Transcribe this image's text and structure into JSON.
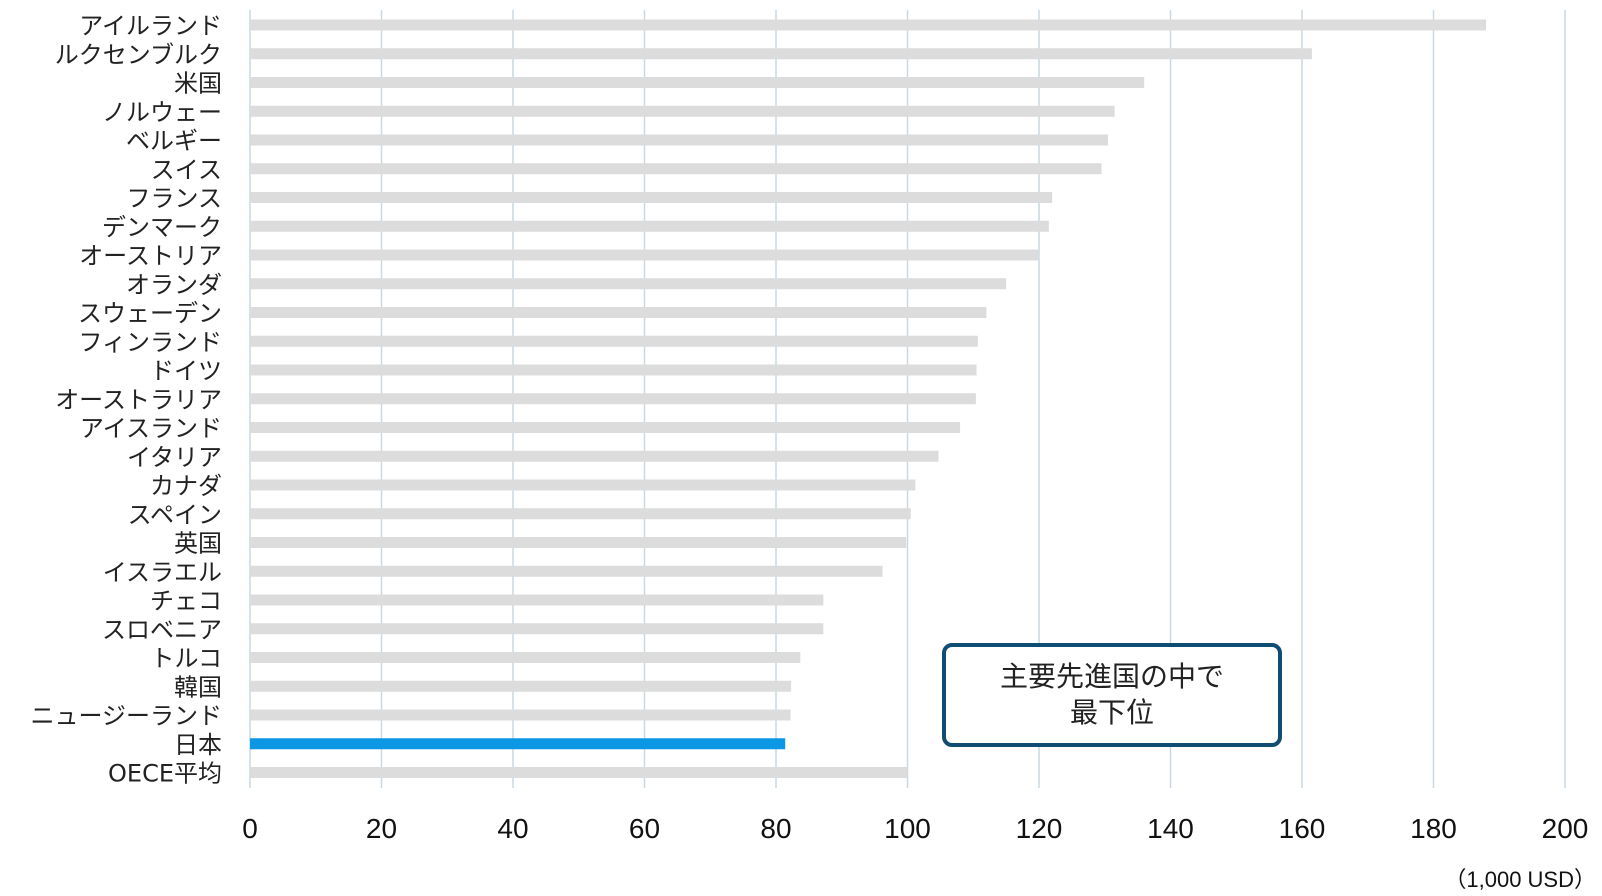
{
  "chart_data": {
    "type": "bar",
    "orientation": "horizontal",
    "categories": [
      "アイルランド",
      "ルクセンブルク",
      "米国",
      "ノルウェー",
      "ベルギー",
      "スイス",
      "フランス",
      "デンマーク",
      "オーストリア",
      "オランダ",
      "スウェーデン",
      "フィンランド",
      "ドイツ",
      "オーストラリア",
      "アイスランド",
      "イタリア",
      "カナダ",
      "スペイン",
      "英国",
      "イスラエル",
      "チェコ",
      "スロベニア",
      "トルコ",
      "韓国",
      "ニュージーランド",
      "日本",
      "OECE平均"
    ],
    "values": [
      188,
      161.5,
      136,
      131.5,
      130.5,
      129.5,
      122,
      121.5,
      120,
      115,
      112,
      110.7,
      110.5,
      110.4,
      108,
      104.7,
      101.2,
      100.5,
      99.8,
      96.2,
      87.2,
      87.2,
      83.7,
      82.3,
      82.2,
      81.4,
      100
    ],
    "highlight": "日本",
    "colors": {
      "bar": "#dcdcdc",
      "highlight": "#0b97e3",
      "grid": "#c9d9e3"
    },
    "xlim": [
      0,
      200
    ],
    "xticks": [
      "0",
      "20",
      "40",
      "60",
      "80",
      "100",
      "120",
      "140",
      "160",
      "180",
      "200"
    ],
    "unit_label": "（1,000 USD）",
    "grid": true
  },
  "callout": {
    "line1": "主要先進国の中で",
    "line2": "最下位"
  }
}
